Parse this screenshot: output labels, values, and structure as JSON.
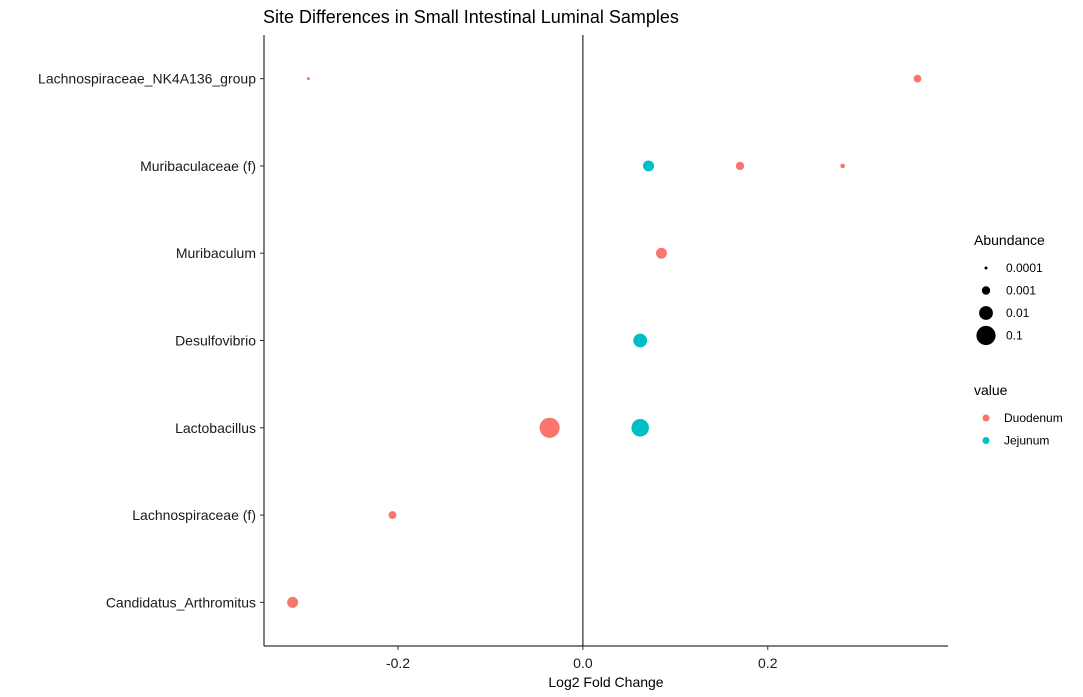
{
  "chart_data": {
    "type": "scatter",
    "title": "Site Differences in Small Intestinal Luminal Samples",
    "xlabel": "Log2 Fold Change",
    "ylabel": "",
    "xlim": [
      -0.345,
      0.395
    ],
    "x_ticks": [
      -0.2,
      0.0,
      0.2
    ],
    "x_tick_labels": [
      "-0.2",
      "0.0",
      "0.2"
    ],
    "categories": [
      "Lachnospiraceae_NK4A136_group",
      "Muribaculaceae (f)",
      "Muribaculum",
      "Desulfovibrio",
      "Lactobacillus",
      "Lachnospiraceae (f)",
      "Candidatus_Arthromitus"
    ],
    "reference_line_x": 0,
    "grid": false,
    "series": [
      {
        "name": "Duodenum",
        "color": "#F8766D",
        "points": [
          {
            "category": "Lachnospiraceae_NK4A136_group",
            "x": -0.297,
            "abundance": 0.0001
          },
          {
            "category": "Lachnospiraceae_NK4A136_group",
            "x": 0.362,
            "abundance": 0.0008
          },
          {
            "category": "Muribaculaceae (f)",
            "x": 0.17,
            "abundance": 0.001
          },
          {
            "category": "Muribaculaceae (f)",
            "x": 0.281,
            "abundance": 0.0002
          },
          {
            "category": "Muribaculum",
            "x": 0.085,
            "abundance": 0.003
          },
          {
            "category": "Lactobacillus",
            "x": -0.036,
            "abundance": 0.15
          },
          {
            "category": "Lachnospiraceae (f)",
            "x": -0.206,
            "abundance": 0.0008
          },
          {
            "category": "Candidatus_Arthromitus",
            "x": -0.314,
            "abundance": 0.003
          }
        ]
      },
      {
        "name": "Jejunum",
        "color": "#00BFC4",
        "points": [
          {
            "category": "Muribaculaceae (f)",
            "x": 0.071,
            "abundance": 0.003
          },
          {
            "category": "Desulfovibrio",
            "x": 0.062,
            "abundance": 0.01
          },
          {
            "category": "Lactobacillus",
            "x": 0.062,
            "abundance": 0.05
          }
        ]
      }
    ],
    "legend": {
      "position": "right",
      "size_title": "Abundance",
      "size_items": [
        {
          "label": "0.0001",
          "abundance": 0.0001
        },
        {
          "label": "0.001",
          "abundance": 0.001
        },
        {
          "label": "0.01",
          "abundance": 0.01
        },
        {
          "label": "0.1",
          "abundance": 0.1
        }
      ],
      "color_title": "value",
      "color_items": [
        {
          "label": "Duodenum",
          "color": "#F8766D"
        },
        {
          "label": "Jejunum",
          "color": "#00BFC4"
        }
      ]
    }
  }
}
